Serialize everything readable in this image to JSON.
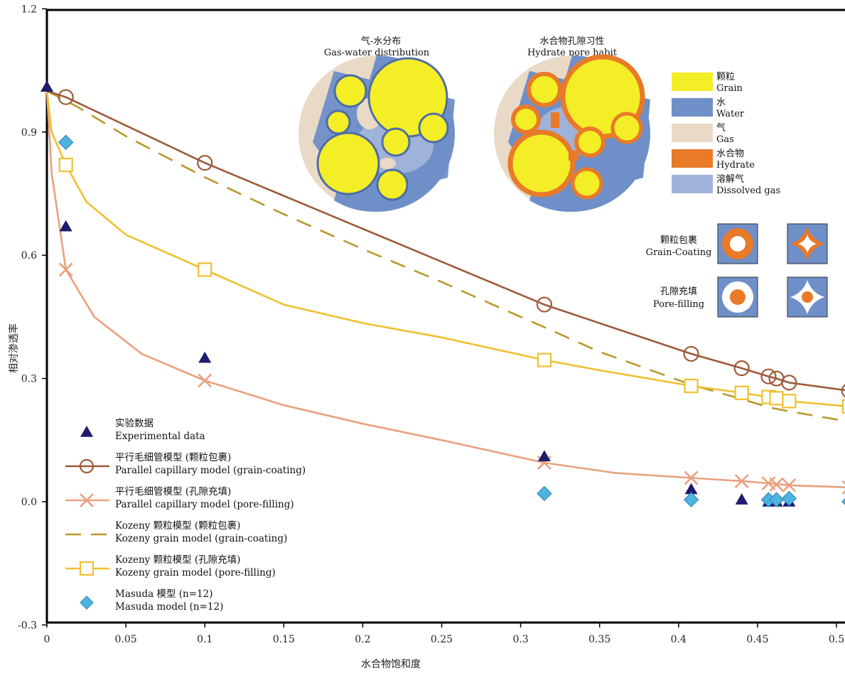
{
  "chart_data": {
    "type": "line",
    "xlabel": "水合物饱和度",
    "ylabel": "相对渗透率",
    "xlim": [
      0,
      0.52
    ],
    "ylim": [
      -0.3,
      1.2
    ],
    "x_ticks": [
      "0",
      "0.05",
      "0.1",
      "0.15",
      "0.2",
      "0.25",
      "0.3",
      "0.35",
      "0.4",
      "0.45",
      "0.5"
    ],
    "y_ticks": [
      "-0.3",
      "0.0",
      "0.3",
      "0.6",
      "0.9",
      "1.2"
    ],
    "grid": false,
    "legend_position": "bottom-left",
    "series": [
      {
        "key": "experimental",
        "name_cn": "实验数据",
        "name_en": "Experimental data",
        "style": "markers",
        "marker": "triangle",
        "color": "#1f1b6e",
        "points": [
          [
            0,
            1.01
          ],
          [
            0.012,
            0.67
          ],
          [
            0.1,
            0.35
          ],
          [
            0.315,
            0.11
          ],
          [
            0.408,
            0.03
          ],
          [
            0.44,
            0.005
          ],
          [
            0.457,
            0.0
          ],
          [
            0.462,
            0.0
          ],
          [
            0.47,
            0.0
          ],
          [
            0.508,
            0.01
          ]
        ]
      },
      {
        "key": "pc_gc",
        "name_cn": "平行毛细管模型 (颗粒包裹)",
        "name_en": "Parallel capillary model  (grain-coating)",
        "style": "line",
        "marker": "circle",
        "color": "#9e5a3a",
        "points": [
          [
            0,
            1.0
          ],
          [
            0.012,
            0.985
          ],
          [
            0.1,
            0.825
          ],
          [
            0.315,
            0.48
          ],
          [
            0.408,
            0.36
          ],
          [
            0.44,
            0.325
          ],
          [
            0.457,
            0.305
          ],
          [
            0.462,
            0.3
          ],
          [
            0.47,
            0.29
          ],
          [
            0.508,
            0.27
          ]
        ],
        "marker_points": [
          [
            0.012,
            0.985
          ],
          [
            0.1,
            0.825
          ],
          [
            0.315,
            0.48
          ],
          [
            0.408,
            0.36
          ],
          [
            0.44,
            0.325
          ],
          [
            0.457,
            0.305
          ],
          [
            0.462,
            0.3
          ],
          [
            0.47,
            0.29
          ],
          [
            0.508,
            0.27
          ]
        ]
      },
      {
        "key": "pc_pf",
        "name_cn": "平行毛细管模型 (孔隙充填)",
        "name_en": "Parallel capillary model  (pore-filling)",
        "style": "line",
        "marker": "x",
        "color": "#e8a17e",
        "points": [
          [
            0,
            1.0
          ],
          [
            0.003,
            0.8
          ],
          [
            0.012,
            0.565
          ],
          [
            0.03,
            0.45
          ],
          [
            0.06,
            0.36
          ],
          [
            0.1,
            0.295
          ],
          [
            0.15,
            0.235
          ],
          [
            0.2,
            0.19
          ],
          [
            0.25,
            0.15
          ],
          [
            0.315,
            0.095
          ],
          [
            0.36,
            0.07
          ],
          [
            0.408,
            0.058
          ],
          [
            0.44,
            0.05
          ],
          [
            0.457,
            0.045
          ],
          [
            0.47,
            0.04
          ],
          [
            0.508,
            0.035
          ]
        ],
        "marker_points": [
          [
            0.012,
            0.565
          ],
          [
            0.1,
            0.295
          ],
          [
            0.315,
            0.095
          ],
          [
            0.408,
            0.058
          ],
          [
            0.44,
            0.05
          ],
          [
            0.457,
            0.045
          ],
          [
            0.462,
            0.042
          ],
          [
            0.47,
            0.04
          ],
          [
            0.508,
            0.035
          ]
        ]
      },
      {
        "key": "kz_gc",
        "name_cn": "Kozeny 颗粒模型 (颗粒包裹)",
        "name_en": "Kozeny grain model  (grain-coating)",
        "style": "dashed",
        "marker": "none",
        "color": "#b79a2e",
        "points": [
          [
            0,
            1.0
          ],
          [
            0.02,
            0.96
          ],
          [
            0.05,
            0.89
          ],
          [
            0.1,
            0.79
          ],
          [
            0.15,
            0.7
          ],
          [
            0.2,
            0.615
          ],
          [
            0.25,
            0.535
          ],
          [
            0.3,
            0.45
          ],
          [
            0.315,
            0.425
          ],
          [
            0.35,
            0.365
          ],
          [
            0.408,
            0.285
          ],
          [
            0.44,
            0.25
          ],
          [
            0.457,
            0.23
          ],
          [
            0.47,
            0.22
          ],
          [
            0.508,
            0.195
          ]
        ]
      },
      {
        "key": "kz_pf",
        "name_cn": "Kozeny 颗粒模型 (孔隙充填)",
        "name_en": "Kozeny grain model  (pore-filling)",
        "style": "line",
        "marker": "square",
        "color": "#f0c030",
        "points": [
          [
            0,
            1.0
          ],
          [
            0.003,
            0.9
          ],
          [
            0.012,
            0.82
          ],
          [
            0.025,
            0.73
          ],
          [
            0.05,
            0.65
          ],
          [
            0.1,
            0.565
          ],
          [
            0.15,
            0.48
          ],
          [
            0.2,
            0.435
          ],
          [
            0.25,
            0.4
          ],
          [
            0.315,
            0.345
          ],
          [
            0.35,
            0.32
          ],
          [
            0.408,
            0.282
          ],
          [
            0.44,
            0.265
          ],
          [
            0.457,
            0.255
          ],
          [
            0.462,
            0.252
          ],
          [
            0.47,
            0.245
          ],
          [
            0.508,
            0.232
          ]
        ],
        "marker_points": [
          [
            0.012,
            0.82
          ],
          [
            0.1,
            0.565
          ],
          [
            0.315,
            0.345
          ],
          [
            0.408,
            0.282
          ],
          [
            0.44,
            0.265
          ],
          [
            0.457,
            0.255
          ],
          [
            0.462,
            0.252
          ],
          [
            0.47,
            0.245
          ],
          [
            0.508,
            0.232
          ]
        ]
      },
      {
        "key": "masuda",
        "name_cn": "Masuda 模型 (n=12)",
        "name_en": "Masuda model (n=12)",
        "style": "markers",
        "marker": "diamond",
        "color": "#4fb3e0",
        "points": [
          [
            0.012,
            0.875
          ],
          [
            0.315,
            0.02
          ],
          [
            0.408,
            0.005
          ],
          [
            0.457,
            0.005
          ],
          [
            0.462,
            0.005
          ],
          [
            0.47,
            0.008
          ],
          [
            0.508,
            0.0
          ]
        ]
      }
    ]
  },
  "insets": {
    "gas_water_title_cn": "气-水分布",
    "gas_water_title_en": "Gas-water distribution",
    "hydrate_title_cn": "水合物孔隙习性",
    "hydrate_title_en": "Hydrate pore habit",
    "material_legend": [
      {
        "cn": "颗粒",
        "en": "Grain",
        "color": "#f3ee26"
      },
      {
        "cn": "水",
        "en": "Water",
        "color": "#6f8fc8"
      },
      {
        "cn": "气",
        "en": "Gas",
        "color": "#ead9c7"
      },
      {
        "cn": "水合物",
        "en": "Hydrate",
        "color": "#e87a28"
      },
      {
        "cn": "溶解气",
        "en": "Dissolved gas",
        "color": "#9fb2d9"
      }
    ],
    "habit_grain_coating_cn": "颗粒包裹",
    "habit_grain_coating_en": "Grain-Coating",
    "habit_pore_filling_cn": "孔隙充填",
    "habit_pore_filling_en": "Pore-filling"
  }
}
